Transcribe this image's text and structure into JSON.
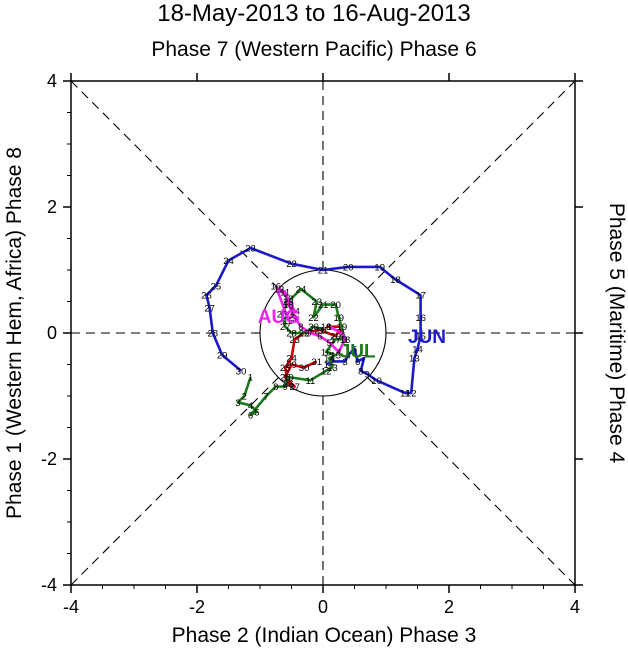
{
  "chart_data": {
    "type": "line",
    "title": "18-May-2013 to 16-Aug-2013",
    "subtitle": "Phase 7 (Western Pacific) Phase 6",
    "xlabel": "Phase 2 (Indian Ocean) Phase 3",
    "ylabel_left": "Phase 1 (Western Hem, Africa) Phase 8",
    "ylabel_right": "Phase 5 (Maritime) Phase 4",
    "xlim": [
      -4,
      4
    ],
    "ylim": [
      -4,
      4
    ],
    "xticks": [
      -4,
      -2,
      0,
      2,
      4
    ],
    "yticks": [
      -4,
      -2,
      0,
      2,
      4
    ],
    "xtick_labels": [
      "-4",
      "-2",
      "0",
      "2",
      "4"
    ],
    "ytick_labels": [
      "-4",
      "-2",
      "0",
      "2",
      "4"
    ],
    "unit_circle_radius": 1,
    "colors": {
      "may": "#cc0000",
      "jun": "#1a1acc",
      "jul": "#1a7a1a",
      "aug": "#ee22ee"
    },
    "month_labels": [
      {
        "text": "JUN",
        "x": 1.65,
        "y": -0.05,
        "color": "#1a1acc"
      },
      {
        "text": "JUL",
        "x": 0.55,
        "y": -0.28,
        "color": "#1a7a1a"
      },
      {
        "text": "AUG",
        "x": -0.7,
        "y": 0.27,
        "color": "#ee22ee"
      }
    ],
    "series": [
      {
        "name": "May",
        "color": "#cc0000",
        "points": [
          {
            "day": "18",
            "x": 0.05,
            "y": 0.1
          },
          {
            "day": "19",
            "x": 0.3,
            "y": 0.1
          },
          {
            "day": "20",
            "x": 0.2,
            "y": -0.05
          },
          {
            "day": "21",
            "x": -0.05,
            "y": 0.05
          },
          {
            "day": "22",
            "x": -0.3,
            "y": 0.0
          },
          {
            "day": "23",
            "x": -0.45,
            "y": -0.1
          },
          {
            "day": "24",
            "x": -0.5,
            "y": -0.4
          },
          {
            "day": "25",
            "x": -0.6,
            "y": -0.55
          },
          {
            "day": "26",
            "x": -0.55,
            "y": -0.8
          },
          {
            "day": "27",
            "x": -0.45,
            "y": -0.85
          },
          {
            "day": "28",
            "x": -0.6,
            "y": -0.7
          },
          {
            "day": "29",
            "x": -0.5,
            "y": -0.5
          },
          {
            "day": "30",
            "x": -0.3,
            "y": -0.55
          },
          {
            "day": "31",
            "x": -0.1,
            "y": -0.45
          }
        ]
      },
      {
        "name": "Jun",
        "color": "#1a1acc",
        "points": [
          {
            "day": "1",
            "x": 0.05,
            "y": -0.5
          },
          {
            "day": "2",
            "x": 0.15,
            "y": -0.45
          },
          {
            "day": "3",
            "x": 0.35,
            "y": -0.45
          },
          {
            "day": "4",
            "x": 0.4,
            "y": -0.35
          },
          {
            "day": "5",
            "x": 0.5,
            "y": -0.25
          },
          {
            "day": "6",
            "x": 0.55,
            "y": -0.45
          },
          {
            "day": "7",
            "x": 0.65,
            "y": -0.4
          },
          {
            "day": "8",
            "x": 0.6,
            "y": -0.6
          },
          {
            "day": "9",
            "x": 0.7,
            "y": -0.65
          },
          {
            "day": "10",
            "x": 0.85,
            "y": -0.75
          },
          {
            "day": "11",
            "x": 1.3,
            "y": -0.95
          },
          {
            "day": "12",
            "x": 1.4,
            "y": -0.95
          },
          {
            "day": "13",
            "x": 1.45,
            "y": -0.4
          },
          {
            "day": "14",
            "x": 1.5,
            "y": -0.25
          },
          {
            "day": "15",
            "x": 1.55,
            "y": -0.05
          },
          {
            "day": "16",
            "x": 1.55,
            "y": 0.25
          },
          {
            "day": "17",
            "x": 1.55,
            "y": 0.6
          },
          {
            "day": "18",
            "x": 1.15,
            "y": 0.85
          },
          {
            "day": "19",
            "x": 0.9,
            "y": 1.05
          },
          {
            "day": "20",
            "x": 0.4,
            "y": 1.05
          },
          {
            "day": "21",
            "x": 0.0,
            "y": 1.0
          },
          {
            "day": "22",
            "x": -0.5,
            "y": 1.1
          },
          {
            "day": "23",
            "x": -1.15,
            "y": 1.35
          },
          {
            "day": "24",
            "x": -1.5,
            "y": 1.15
          },
          {
            "day": "25",
            "x": -1.7,
            "y": 0.75
          },
          {
            "day": "26",
            "x": -1.85,
            "y": 0.6
          },
          {
            "day": "27",
            "x": -1.8,
            "y": 0.4
          },
          {
            "day": "28",
            "x": -1.75,
            "y": 0.0
          },
          {
            "day": "29",
            "x": -1.6,
            "y": -0.35
          },
          {
            "day": "30",
            "x": -1.3,
            "y": -0.6
          }
        ]
      },
      {
        "name": "Jul",
        "color": "#1a7a1a",
        "points": [
          {
            "day": "1",
            "x": -1.15,
            "y": -0.7
          },
          {
            "day": "2",
            "x": -1.25,
            "y": -1.0
          },
          {
            "day": "3",
            "x": -1.35,
            "y": -1.1
          },
          {
            "day": "4",
            "x": -1.15,
            "y": -1.15
          },
          {
            "day": "5",
            "x": -1.05,
            "y": -1.25
          },
          {
            "day": "6",
            "x": -1.15,
            "y": -1.3
          },
          {
            "day": "7",
            "x": -0.9,
            "y": -1.0
          },
          {
            "day": "8",
            "x": -0.75,
            "y": -0.85
          },
          {
            "day": "9",
            "x": -0.6,
            "y": -0.85
          },
          {
            "day": "10",
            "x": -0.55,
            "y": -0.7
          },
          {
            "day": "11",
            "x": -0.2,
            "y": -0.75
          },
          {
            "day": "12",
            "x": 0.05,
            "y": -0.6
          },
          {
            "day": "13",
            "x": 0.15,
            "y": -0.55
          },
          {
            "day": "14",
            "x": 0.1,
            "y": -0.4
          },
          {
            "day": "15",
            "x": 0.2,
            "y": -0.35
          },
          {
            "day": "16",
            "x": 0.05,
            "y": -0.3
          },
          {
            "day": "17",
            "x": 0.2,
            "y": -0.1
          },
          {
            "day": "18",
            "x": 0.35,
            "y": -0.1
          },
          {
            "day": "19",
            "x": 0.25,
            "y": 0.25
          },
          {
            "day": "20",
            "x": 0.2,
            "y": 0.45
          },
          {
            "day": "21",
            "x": 0.0,
            "y": 0.45
          },
          {
            "day": "22",
            "x": -0.15,
            "y": 0.25
          },
          {
            "day": "23",
            "x": -0.1,
            "y": 0.5
          },
          {
            "day": "24",
            "x": -0.35,
            "y": 0.7
          },
          {
            "day": "25",
            "x": -0.55,
            "y": 0.5
          },
          {
            "day": "26",
            "x": -0.65,
            "y": 0.3
          },
          {
            "day": "27",
            "x": -0.6,
            "y": 0.1
          },
          {
            "day": "28",
            "x": -0.5,
            "y": 0.0
          },
          {
            "day": "29",
            "x": -0.3,
            "y": 0.0
          },
          {
            "day": "30",
            "x": -0.15,
            "y": 0.1
          },
          {
            "day": "31",
            "x": 0.0,
            "y": 0.05
          }
        ]
      },
      {
        "name": "Aug",
        "color": "#ee22ee",
        "points": [
          {
            "day": "1",
            "x": 0.1,
            "y": 0.1
          },
          {
            "day": "2",
            "x": 0.3,
            "y": 0.0
          },
          {
            "day": "3",
            "x": 0.35,
            "y": -0.1
          },
          {
            "day": "4",
            "x": 0.25,
            "y": -0.3
          },
          {
            "day": "5",
            "x": 0.1,
            "y": -0.15
          },
          {
            "day": "6",
            "x": -0.05,
            "y": -0.05
          },
          {
            "day": "7",
            "x": -0.2,
            "y": 0.0
          },
          {
            "day": "8",
            "x": -0.35,
            "y": 0.1
          },
          {
            "day": "9",
            "x": -0.45,
            "y": 0.25
          },
          {
            "day": "10",
            "x": -0.55,
            "y": 0.45
          },
          {
            "day": "11",
            "x": -0.6,
            "y": 0.65
          },
          {
            "day": "12",
            "x": -0.7,
            "y": 0.7
          },
          {
            "day": "13",
            "x": -0.55,
            "y": 0.55
          },
          {
            "day": "14",
            "x": -0.45,
            "y": 0.35
          },
          {
            "day": "15",
            "x": -0.55,
            "y": 0.2
          },
          {
            "day": "16",
            "x": -0.75,
            "y": 0.75
          }
        ]
      }
    ]
  }
}
